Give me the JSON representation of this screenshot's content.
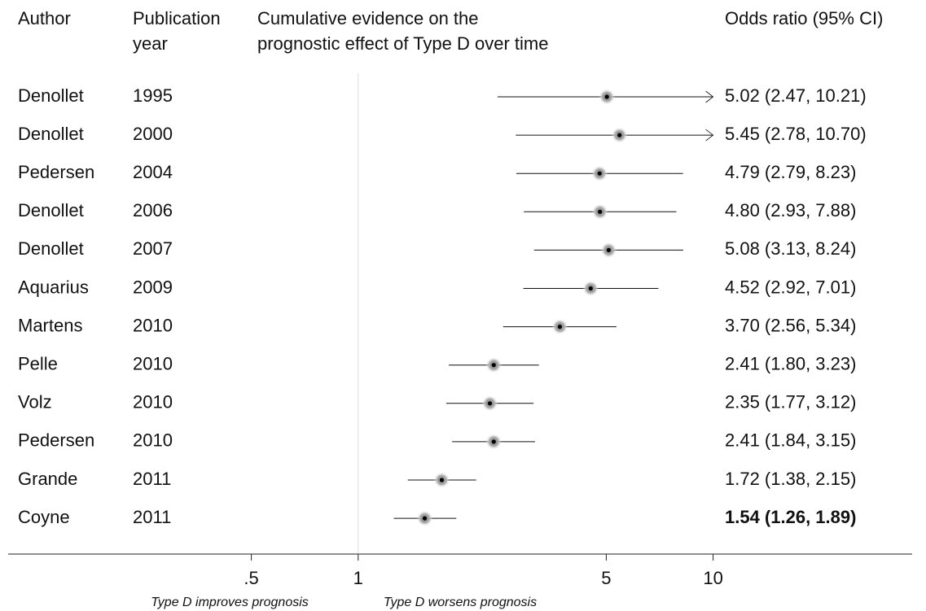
{
  "chart_data": {
    "type": "forest",
    "headers": {
      "author": "Author",
      "year": [
        "Publication",
        "year"
      ],
      "plot": [
        "Cumulative evidence on the",
        "prognostic effect of Type D over time"
      ],
      "estimate": "Odds ratio (95% CI)"
    },
    "categories": [
      "Denollet",
      "Denollet",
      "Pedersen",
      "Denollet",
      "Denollet",
      "Aquarius",
      "Martens",
      "Pelle",
      "Volz",
      "Pedersen",
      "Grande",
      "Coyne"
    ],
    "years": [
      "1995",
      "2000",
      "2004",
      "2006",
      "2007",
      "2009",
      "2010",
      "2010",
      "2010",
      "2010",
      "2011",
      "2011"
    ],
    "values": [
      5.02,
      5.45,
      4.79,
      4.8,
      5.08,
      4.52,
      3.7,
      2.41,
      2.35,
      2.41,
      1.72,
      1.54
    ],
    "lower": [
      2.47,
      2.78,
      2.79,
      2.93,
      3.13,
      2.92,
      2.56,
      1.8,
      1.77,
      1.84,
      1.38,
      1.26
    ],
    "upper": [
      10.21,
      10.7,
      8.23,
      7.88,
      8.24,
      7.01,
      5.34,
      3.23,
      3.12,
      3.15,
      2.15,
      1.89
    ],
    "value_labels": [
      "5.02 (2.47, 10.21)",
      "5.45 (2.78, 10.70)",
      "4.79 (2.79, 8.23)",
      "4.80 (2.93, 7.88)",
      "5.08 (3.13, 8.24)",
      "4.52 (2.92, 7.01)",
      "3.70 (2.56, 5.34)",
      "2.41 (1.80, 3.23)",
      "2.35 (1.77, 3.12)",
      "2.41 (1.84, 3.15)",
      "1.72 (1.38, 2.15)",
      "1.54 (1.26, 1.89)"
    ],
    "xscale": "log",
    "xlim": [
      0.1,
      36
    ],
    "xticks": [
      {
        "value": 0.5,
        "label": ".5"
      },
      1,
      5,
      10
    ],
    "annotations": [
      "Type D improves prognosis",
      "Type D worsens prognosis"
    ]
  }
}
